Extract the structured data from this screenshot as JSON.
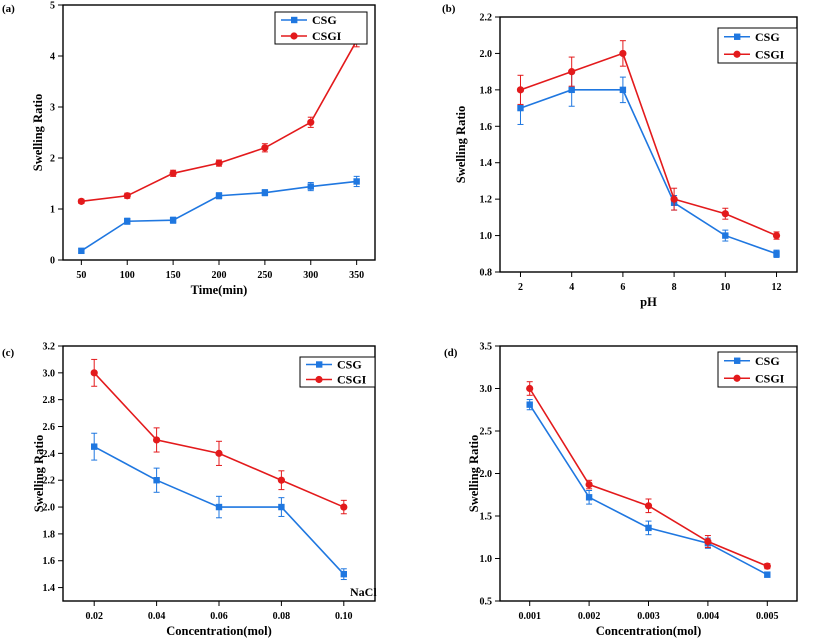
{
  "figure": {
    "label": "Swelling ratio figure, 4 panels"
  },
  "chart_data": [
    {
      "panel": "(a)",
      "type": "line",
      "xlabel": "Time(min)",
      "ylabel": "Swelling Ratio",
      "xlim": [
        30,
        370
      ],
      "ylim": [
        0,
        5
      ],
      "xticks": [
        50,
        100,
        150,
        200,
        250,
        300,
        350
      ],
      "xtick_labels": [
        "50",
        "100",
        "150",
        "200",
        "250",
        "300",
        "350"
      ],
      "yticks": [
        0,
        1,
        2,
        3,
        4,
        5
      ],
      "ytick_labels": [
        "0",
        "1",
        "2",
        "3",
        "4",
        "5"
      ],
      "legend_position": "top-right",
      "x": [
        50,
        100,
        150,
        200,
        250,
        300,
        350
      ],
      "series": [
        {
          "name": "CSG",
          "color": "#1f77e0",
          "marker": "square",
          "values": [
            0.18,
            0.76,
            0.78,
            1.26,
            1.32,
            1.44,
            1.54
          ],
          "errors": [
            0.04,
            0.06,
            0.06,
            0.06,
            0.06,
            0.08,
            0.1
          ]
        },
        {
          "name": "CSGI",
          "color": "#e31a1c",
          "marker": "circle",
          "values": [
            1.15,
            1.26,
            1.7,
            1.9,
            2.2,
            2.7,
            4.3
          ],
          "errors": [
            0.04,
            0.05,
            0.06,
            0.06,
            0.08,
            0.1,
            0.12
          ]
        }
      ]
    },
    {
      "panel": "(b)",
      "type": "line",
      "xlabel": "pH",
      "ylabel": "Swelling Ratio",
      "xlim": [
        1.2,
        12.8
      ],
      "ylim": [
        0.8,
        2.2
      ],
      "xticks": [
        2,
        4,
        6,
        8,
        10,
        12
      ],
      "xtick_labels": [
        "2",
        "4",
        "6",
        "8",
        "10",
        "12"
      ],
      "yticks": [
        0.8,
        1.0,
        1.2,
        1.4,
        1.6,
        1.8,
        2.0,
        2.2
      ],
      "ytick_labels": [
        "0.8",
        "1.0",
        "1.2",
        "1.4",
        "1.6",
        "1.8",
        "2.0",
        "2.2"
      ],
      "legend_position": "top-right",
      "x": [
        2,
        4,
        6,
        8,
        10,
        12
      ],
      "series": [
        {
          "name": "CSG",
          "color": "#1f77e0",
          "marker": "square",
          "values": [
            1.7,
            1.8,
            1.8,
            1.18,
            1.0,
            0.9
          ],
          "errors": [
            0.09,
            0.09,
            0.07,
            0.04,
            0.03,
            0.02
          ]
        },
        {
          "name": "CSGI",
          "color": "#e31a1c",
          "marker": "circle",
          "values": [
            1.8,
            1.9,
            2.0,
            1.2,
            1.12,
            1.0
          ],
          "errors": [
            0.08,
            0.08,
            0.07,
            0.06,
            0.03,
            0.02
          ]
        }
      ]
    },
    {
      "panel": "(c)",
      "type": "line",
      "xlabel": "Concentration(mol)",
      "ylabel": "Swelling Ratio",
      "annotation": "NaCl",
      "xlim": [
        0.01,
        0.11
      ],
      "ylim": [
        1.3,
        3.2
      ],
      "xticks": [
        0.02,
        0.04,
        0.06,
        0.08,
        0.1
      ],
      "xtick_labels": [
        "0.02",
        "0.04",
        "0.06",
        "0.08",
        "0.10"
      ],
      "yticks": [
        1.4,
        1.6,
        1.8,
        2.0,
        2.2,
        2.4,
        2.6,
        2.8,
        3.0,
        3.2
      ],
      "ytick_labels": [
        "1.4",
        "1.6",
        "1.8",
        "2.0",
        "2.2",
        "2.4",
        "2.6",
        "2.8",
        "3.0",
        "3.2"
      ],
      "legend_position": "top-right",
      "x": [
        0.02,
        0.04,
        0.06,
        0.08,
        0.1
      ],
      "series": [
        {
          "name": "CSG",
          "color": "#1f77e0",
          "marker": "square",
          "values": [
            2.45,
            2.2,
            2.0,
            2.0,
            1.5
          ],
          "errors": [
            0.1,
            0.09,
            0.08,
            0.07,
            0.04
          ]
        },
        {
          "name": "CSGI",
          "color": "#e31a1c",
          "marker": "circle",
          "values": [
            3.0,
            2.5,
            2.4,
            2.2,
            2.0
          ],
          "errors": [
            0.1,
            0.09,
            0.09,
            0.07,
            0.05
          ]
        }
      ]
    },
    {
      "panel": "(d)",
      "type": "line",
      "xlabel": "Concentration(mol)",
      "ylabel": "Swelling Ratio",
      "xlim": [
        0.0005,
        0.0055
      ],
      "ylim": [
        0.5,
        3.5
      ],
      "xticks": [
        0.001,
        0.002,
        0.003,
        0.004,
        0.005
      ],
      "xtick_labels": [
        "0.001",
        "0.002",
        "0.003",
        "0.004",
        "0.005"
      ],
      "yticks": [
        0.5,
        1.0,
        1.5,
        2.0,
        2.5,
        3.0,
        3.5
      ],
      "ytick_labels": [
        "0.5",
        "1.0",
        "1.5",
        "2.0",
        "2.5",
        "3.0",
        "3.5"
      ],
      "legend_position": "top-right",
      "x": [
        0.001,
        0.002,
        0.003,
        0.004,
        0.005
      ],
      "series": [
        {
          "name": "CSG",
          "color": "#1f77e0",
          "marker": "square",
          "values": [
            2.81,
            1.72,
            1.36,
            1.18,
            0.81
          ],
          "errors": [
            0.06,
            0.08,
            0.08,
            0.06,
            0.03
          ]
        },
        {
          "name": "CSGI",
          "color": "#e31a1c",
          "marker": "circle",
          "values": [
            3.0,
            1.87,
            1.62,
            1.2,
            0.91
          ],
          "errors": [
            0.08,
            0.05,
            0.08,
            0.07,
            0.03
          ]
        }
      ]
    }
  ]
}
